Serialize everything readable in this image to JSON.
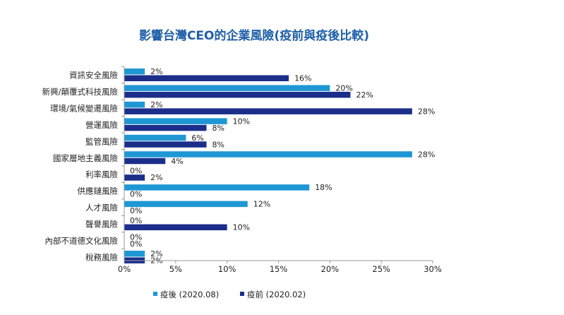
{
  "colors": {
    "after": "#1f97d4",
    "before": "#1b2e8a",
    "title": "#1e5fa8",
    "text": "#222222",
    "axis": "#999999"
  },
  "chart_data": {
    "type": "bar",
    "orientation": "horizontal",
    "title": "影響台灣CEO的企業風險(疫前與疫後比較)",
    "categories": [
      "資訊安全風險",
      "新興/顛覆式科技風險",
      "環境/氣候變遷風險",
      "營運風險",
      "監管風險",
      "國家層地主義風險",
      "利率風險",
      "供應鏈風險",
      "人才風險",
      "聲譽風險",
      "內部不道德文化風險",
      "稅務風險"
    ],
    "series": [
      {
        "name": "疫後 (2020.08)",
        "values": [
          2,
          20,
          2,
          10,
          6,
          28,
          0,
          18,
          12,
          0,
          0,
          2
        ]
      },
      {
        "name": "疫前 (2020.02)",
        "values": [
          16,
          22,
          28,
          8,
          8,
          4,
          2,
          0,
          0,
          10,
          0,
          2
        ]
      }
    ],
    "value_suffix": "%",
    "xlim": [
      0,
      30
    ],
    "xticks": [
      0,
      5,
      10,
      15,
      20,
      25,
      30
    ],
    "xtick_labels": [
      "0%",
      "5%",
      "10%",
      "15%",
      "20%",
      "25%",
      "30%"
    ],
    "grid": false,
    "legend_position": "bottom"
  }
}
